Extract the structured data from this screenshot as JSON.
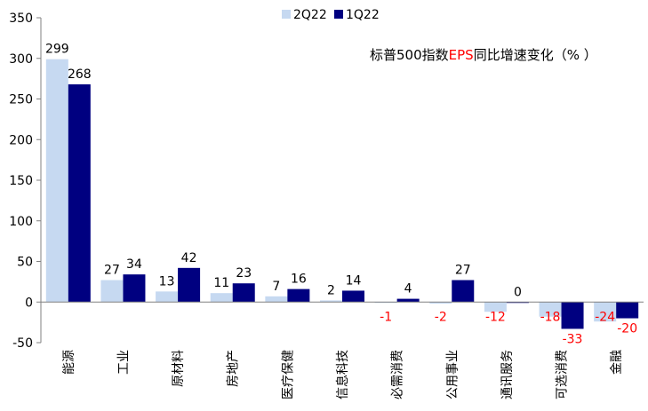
{
  "chart_data": {
    "type": "bar",
    "title_parts": {
      "pre": "标普500指数",
      "highlight": "EPS",
      "post": "同比增速变化（% ）"
    },
    "categories": [
      "能源",
      "工业",
      "原材料",
      "房地产",
      "医疗保健",
      "信息科技",
      "必需消费",
      "公用事业",
      "通讯服务",
      "可选消费",
      "金融"
    ],
    "series": [
      {
        "name": "2Q22",
        "values": [
          299,
          27,
          13,
          11,
          7,
          2,
          -1,
          -2,
          -12,
          -18,
          -24
        ]
      },
      {
        "name": "1Q22",
        "values": [
          268,
          34,
          42,
          23,
          16,
          14,
          4,
          27,
          0,
          -33,
          -20
        ]
      }
    ],
    "ylim": [
      -50,
      350
    ],
    "yticks": [
      -50,
      0,
      50,
      100,
      150,
      200,
      250,
      300,
      350
    ],
    "legend_position": "top-center",
    "grid": false,
    "colors": {
      "series_2q22": "#c6d9f1",
      "series_1q22": "#000080",
      "negative_label": "#ff0000",
      "title_highlight": "#ff0000",
      "axis": "#808080"
    }
  }
}
